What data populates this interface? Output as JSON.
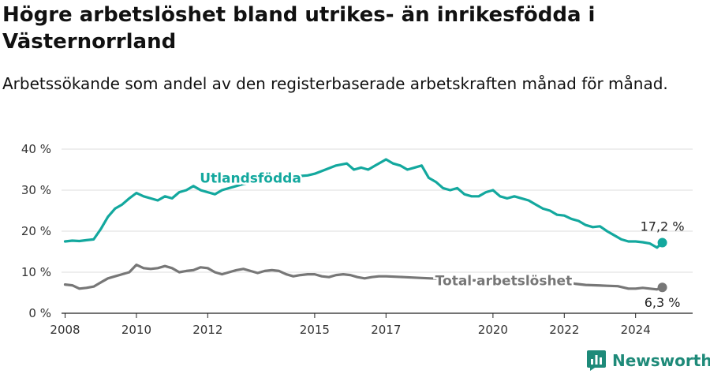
{
  "header": {
    "title": "Högre arbetslöshet bland utrikes- än inrikesfödda i Västernorrland",
    "subtitle": "Arbetssökande som andel av den registerbaserade arbetskraften månad för månad."
  },
  "footer": {
    "brand": "Newsworthy"
  },
  "colors": {
    "foreign_born": "#13a89e",
    "total": "#777777",
    "grid": "#dddddd",
    "brand": "#1e8a79"
  },
  "chart_data": {
    "type": "line",
    "title": "Högre arbetslöshet bland utrikes- än inrikesfödda i Västernorrland",
    "subtitle": "Arbetssökande som andel av den registerbaserade arbetskraften månad för månad.",
    "xlabel": "",
    "ylabel": "",
    "xlim": [
      2007.9,
      2025.6
    ],
    "ylim": [
      0,
      40
    ],
    "y_ticks": [
      0,
      10,
      20,
      30,
      40
    ],
    "y_tick_labels": [
      "0 %",
      "10 %",
      "20 %",
      "30 %",
      "40 %"
    ],
    "x_ticks": [
      2008,
      2010,
      2012,
      2015,
      2017,
      2020,
      2022,
      2024
    ],
    "x_tick_labels": [
      "2008",
      "2010",
      "2012",
      "2015",
      "2017",
      "2020",
      "2022",
      "2024"
    ],
    "grid": "horizontal",
    "series": [
      {
        "name": "Utlandsfödda",
        "color": "#13a89e",
        "end_label": "17,2 %",
        "x": [
          2008.0,
          2008.2,
          2008.4,
          2008.6,
          2008.8,
          2009.0,
          2009.2,
          2009.4,
          2009.6,
          2009.8,
          2010.0,
          2010.2,
          2010.4,
          2010.6,
          2010.8,
          2011.0,
          2011.2,
          2011.4,
          2011.6,
          2011.8,
          2012.0,
          2012.2,
          2012.4,
          2012.6,
          2012.8,
          2013.0,
          2013.3,
          2013.6,
          2014.0,
          2014.4,
          2014.8,
          2015.0,
          2015.3,
          2015.6,
          2015.9,
          2016.1,
          2016.3,
          2016.5,
          2016.7,
          2016.9,
          2017.0,
          2017.2,
          2017.4,
          2017.6,
          2017.8,
          2018.0,
          2018.2,
          2018.4,
          2018.6,
          2018.8,
          2019.0,
          2019.2,
          2019.4,
          2019.6,
          2019.8,
          2020.0,
          2020.2,
          2020.4,
          2020.6,
          2020.8,
          2021.0,
          2021.2,
          2021.4,
          2021.6,
          2021.8,
          2022.0,
          2022.2,
          2022.4,
          2022.6,
          2022.8,
          2023.0,
          2023.2,
          2023.4,
          2023.6,
          2023.8,
          2024.0,
          2024.2,
          2024.4,
          2024.6,
          2024.75
        ],
        "values": [
          17.5,
          17.7,
          17.6,
          17.8,
          18.0,
          20.5,
          23.5,
          25.5,
          26.5,
          28.0,
          29.3,
          28.5,
          28.0,
          27.5,
          28.5,
          28.0,
          29.5,
          30.0,
          31.0,
          30.0,
          29.5,
          29.0,
          30.0,
          30.5,
          31.0,
          31.5,
          32.0,
          32.5,
          33.0,
          33.3,
          33.6,
          34.0,
          35.0,
          36.0,
          36.5,
          35.0,
          35.5,
          35.0,
          36.0,
          37.0,
          37.5,
          36.5,
          36.0,
          35.0,
          35.5,
          36.0,
          33.0,
          32.0,
          30.5,
          30.0,
          30.5,
          29.0,
          28.5,
          28.5,
          29.5,
          30.0,
          28.5,
          28.0,
          28.5,
          28.0,
          27.5,
          26.5,
          25.5,
          25.0,
          24.0,
          23.8,
          23.0,
          22.5,
          21.5,
          21.0,
          21.2,
          20.0,
          19.0,
          18.0,
          17.5,
          17.5,
          17.3,
          17.0,
          16.0,
          17.2
        ]
      },
      {
        "name": "Total arbetslöshet",
        "color": "#777777",
        "end_label": "6,3 %",
        "x": [
          2008.0,
          2008.2,
          2008.4,
          2008.6,
          2008.8,
          2009.0,
          2009.2,
          2009.4,
          2009.6,
          2009.8,
          2010.0,
          2010.2,
          2010.4,
          2010.6,
          2010.8,
          2011.0,
          2011.2,
          2011.4,
          2011.6,
          2011.8,
          2012.0,
          2012.2,
          2012.4,
          2012.6,
          2012.8,
          2013.0,
          2013.2,
          2013.4,
          2013.6,
          2013.8,
          2014.0,
          2014.2,
          2014.4,
          2014.6,
          2014.8,
          2015.0,
          2015.2,
          2015.4,
          2015.6,
          2015.8,
          2016.0,
          2016.2,
          2016.4,
          2016.6,
          2016.8,
          2017.0,
          2017.5,
          2018.0,
          2018.5,
          2019.0,
          2019.5,
          2020.0,
          2020.5,
          2021.0,
          2021.5,
          2022.0,
          2022.3,
          2022.6,
          2022.9,
          2023.2,
          2023.5,
          2023.8,
          2024.0,
          2024.2,
          2024.4,
          2024.6,
          2024.75
        ],
        "values": [
          7.0,
          6.8,
          6.0,
          6.2,
          6.5,
          7.5,
          8.5,
          9.0,
          9.5,
          10.0,
          11.8,
          11.0,
          10.8,
          11.0,
          11.5,
          11.0,
          10.0,
          10.3,
          10.5,
          11.2,
          11.0,
          10.0,
          9.5,
          10.0,
          10.5,
          10.8,
          10.3,
          9.8,
          10.3,
          10.5,
          10.3,
          9.5,
          9.0,
          9.3,
          9.5,
          9.5,
          9.0,
          8.8,
          9.3,
          9.5,
          9.3,
          8.8,
          8.5,
          8.8,
          9.0,
          9.0,
          8.8,
          8.6,
          8.4,
          8.2,
          8.0,
          7.9,
          7.8,
          7.8,
          7.7,
          7.6,
          7.2,
          6.9,
          6.8,
          6.7,
          6.6,
          6.0,
          6.0,
          6.2,
          6.0,
          5.8,
          6.3
        ]
      }
    ],
    "annotations": [
      {
        "series": "Utlandsfödda",
        "text": "Utlandsfödda",
        "x": 2013.2,
        "y": 33
      },
      {
        "series": "Total arbetslöshet",
        "text": "Total arbetslöshet",
        "x": 2020.3,
        "y": 8
      }
    ]
  }
}
